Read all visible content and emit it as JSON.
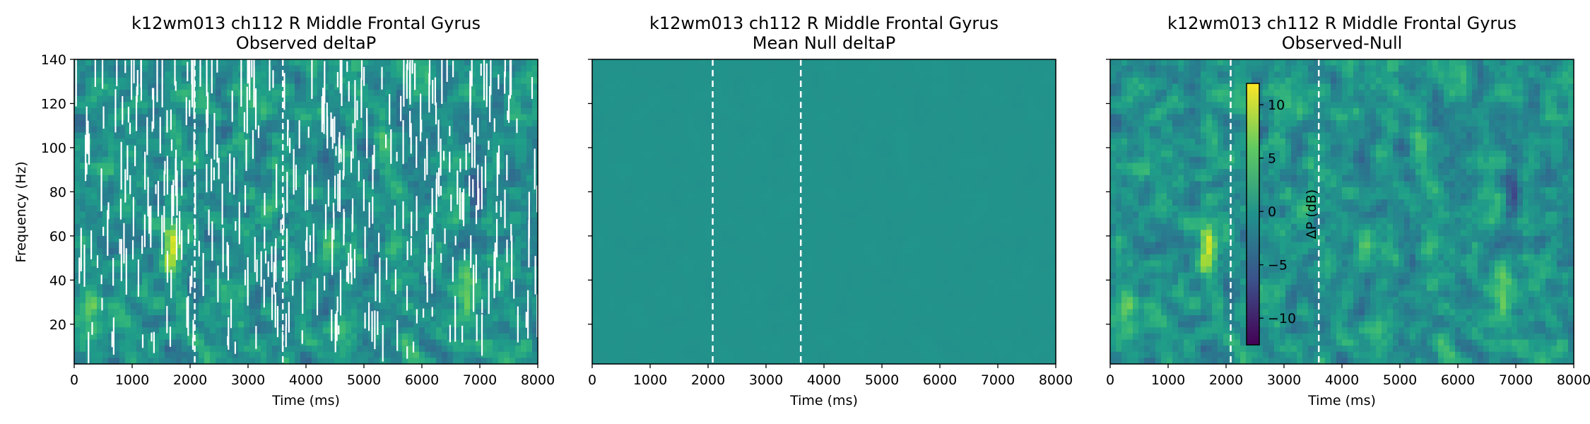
{
  "chart_data": [
    {
      "type": "heatmap",
      "title": "k12wm013 ch112 R Middle Frontal Gyrus",
      "subtitle": "Observed deltaP",
      "xlabel": "Time (ms)",
      "ylabel": "Frequency (Hz)",
      "xlim": [
        0,
        8000
      ],
      "ylim": [
        2,
        140
      ],
      "xticks": [
        0,
        1000,
        2000,
        3000,
        4000,
        5000,
        6000,
        7000,
        8000
      ],
      "yticks": [
        20,
        40,
        60,
        80,
        100,
        120,
        140
      ],
      "event_lines_ms": [
        2080,
        3600
      ],
      "colormap": "viridis",
      "clim": [
        -12.5,
        12
      ],
      "grid": false,
      "note_masked": true,
      "hotspots": [
        {
          "time_ms": 1680,
          "freq_hz": 57,
          "value": 11
        },
        {
          "time_ms": 6750,
          "freq_hz": 35,
          "value": 7
        },
        {
          "time_ms": 300,
          "freq_hz": 25,
          "value": 5
        },
        {
          "time_ms": 4400,
          "freq_hz": 55,
          "value": 4
        },
        {
          "time_ms": 6950,
          "freq_hz": 78,
          "value": -8
        }
      ]
    },
    {
      "type": "heatmap",
      "title": "k12wm013 ch112 R Middle Frontal Gyrus",
      "subtitle": "Mean Null deltaP",
      "xlabel": "Time (ms)",
      "ylabel": "",
      "xlim": [
        0,
        8000
      ],
      "ylim": [
        2,
        140
      ],
      "xticks": [
        0,
        1000,
        2000,
        3000,
        4000,
        5000,
        6000,
        7000,
        8000
      ],
      "yticks": [
        20,
        40,
        60,
        80,
        100,
        120,
        140
      ],
      "event_lines_ms": [
        2080,
        3600
      ],
      "colormap": "viridis",
      "clim": [
        -12.5,
        12
      ],
      "grid": false,
      "approx_value": 0
    },
    {
      "type": "heatmap",
      "title": "k12wm013 ch112 R Middle Frontal Gyrus",
      "subtitle": "Observed-Null",
      "xlabel": "Time (ms)",
      "ylabel": "",
      "xlim": [
        0,
        8000
      ],
      "ylim": [
        2,
        140
      ],
      "xticks": [
        0,
        1000,
        2000,
        3000,
        4000,
        5000,
        6000,
        7000,
        8000
      ],
      "yticks": [
        20,
        40,
        60,
        80,
        100,
        120,
        140
      ],
      "event_lines_ms": [
        2080,
        3600
      ],
      "colormap": "viridis",
      "clim": [
        -12.5,
        12
      ],
      "grid": false,
      "colorbar": {
        "label": "ΔP (dB)",
        "ticks": [
          10,
          5,
          0,
          -5,
          -10
        ],
        "placement": "inside-left"
      },
      "hotspots": [
        {
          "time_ms": 1680,
          "freq_hz": 57,
          "value": 11
        },
        {
          "time_ms": 6750,
          "freq_hz": 35,
          "value": 7
        },
        {
          "time_ms": 300,
          "freq_hz": 25,
          "value": 5
        },
        {
          "time_ms": 4400,
          "freq_hz": 55,
          "value": 4
        },
        {
          "time_ms": 6950,
          "freq_hz": 78,
          "value": -8
        }
      ]
    }
  ]
}
